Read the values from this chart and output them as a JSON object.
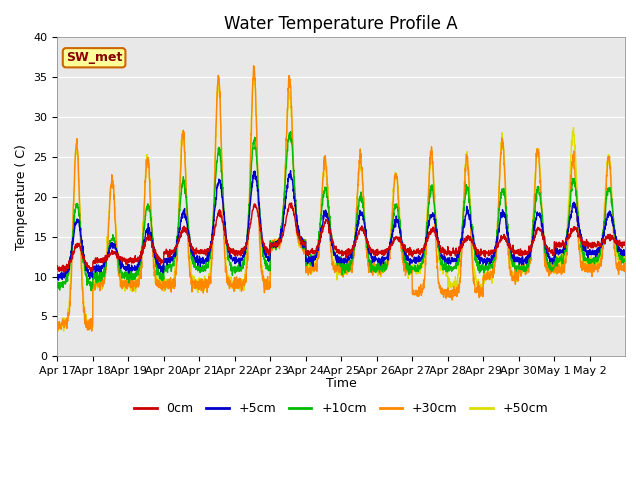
{
  "title": "Water Temperature Profile A",
  "xlabel": "Time",
  "ylabel": "Temperature ( C)",
  "ylim": [
    0,
    40
  ],
  "xlim": [
    0,
    16
  ],
  "tick_labels": [
    "Apr 17",
    "Apr 18",
    "Apr 19",
    "Apr 20",
    "Apr 21",
    "Apr 22",
    "Apr 23",
    "Apr 24",
    "Apr 25",
    "Apr 26",
    "Apr 27",
    "Apr 28",
    "Apr 29",
    "Apr 30",
    "May 1",
    "May 2"
  ],
  "legend_labels": [
    "0cm",
    "+5cm",
    "+10cm",
    "+30cm",
    "+50cm"
  ],
  "legend_colors": [
    "#cc0000",
    "#0000cc",
    "#00bb00",
    "#ff8800",
    "#dddd00"
  ],
  "annotation_text": "SW_met",
  "annotation_bg": "#ffff99",
  "annotation_border": "#cc6600",
  "annotation_text_color": "#880000",
  "bg_color": "#e8e8e8",
  "title_fontsize": 12,
  "axis_fontsize": 9,
  "tick_fontsize": 8,
  "legend_fontsize": 9
}
